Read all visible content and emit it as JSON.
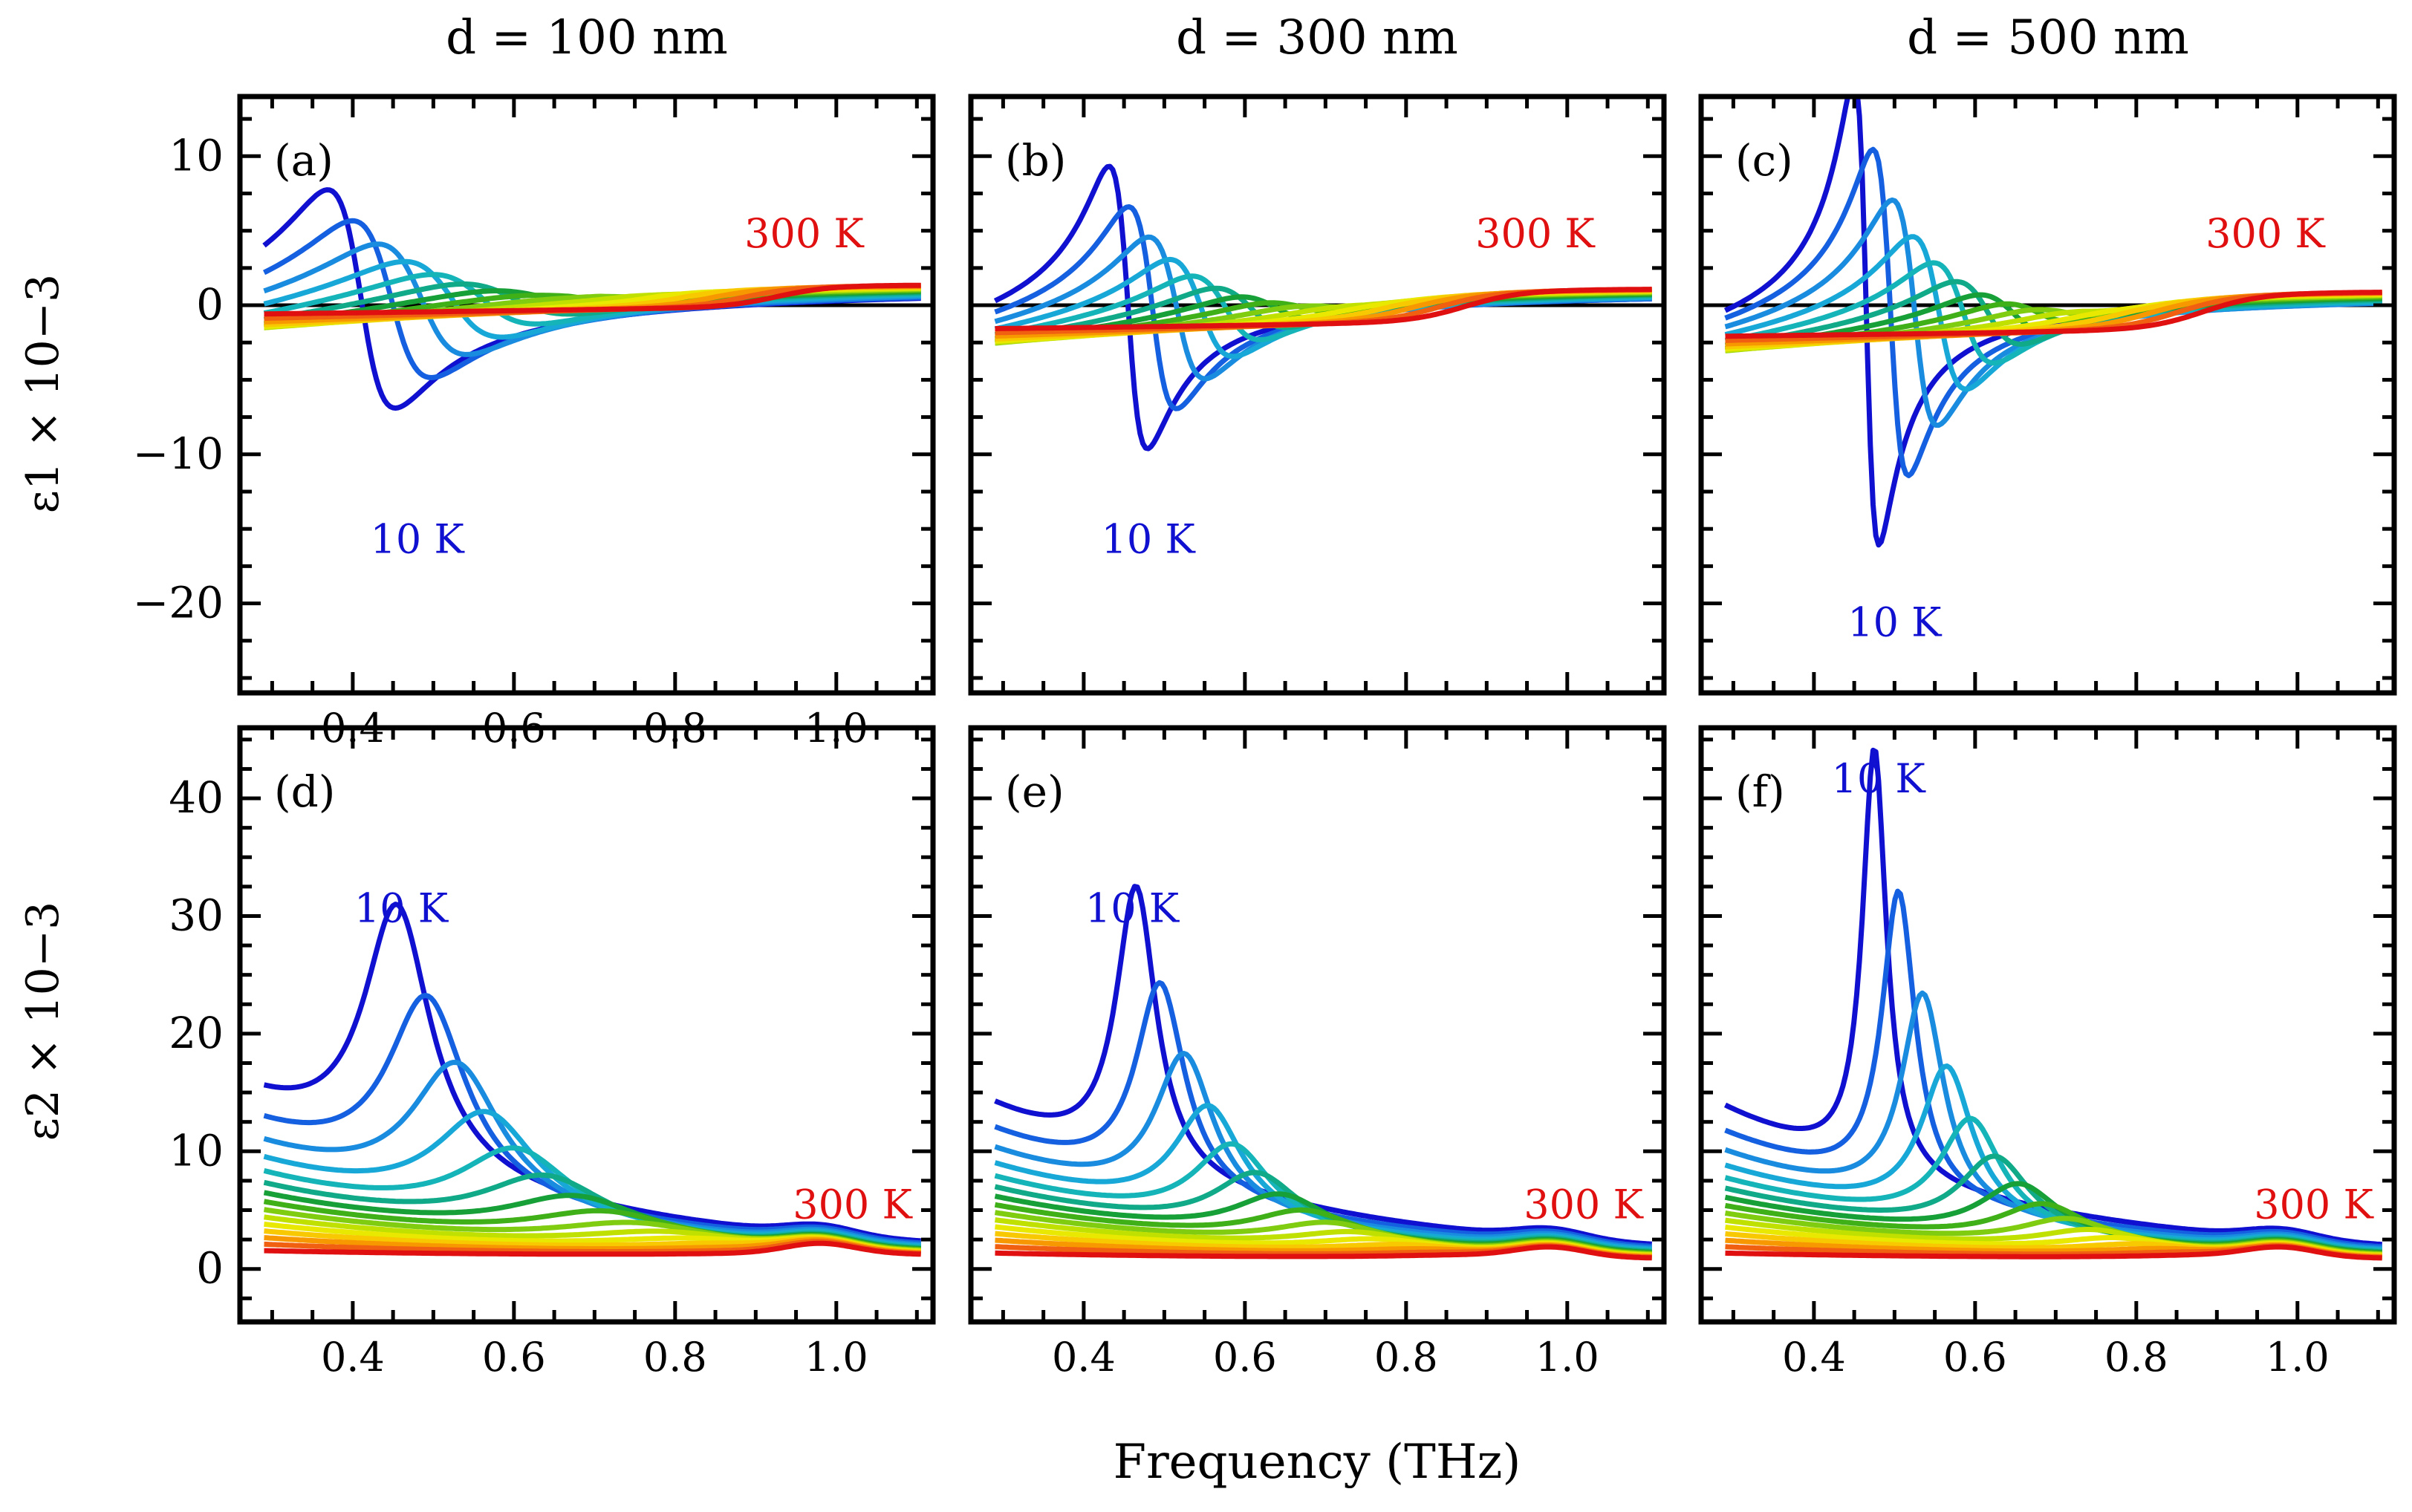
{
  "figure": {
    "xlabel": "Frequency (THz)",
    "column_titles": [
      "d = 100 nm",
      "d = 300 nm",
      "d = 500 nm"
    ],
    "row_ylabels": [
      "ε1 × 10−3",
      "ε2 × 10−3"
    ]
  },
  "colors": {
    "temperature_scale": [
      "#1010d0",
      "#1560e0",
      "#1a8ce0",
      "#18a8d8",
      "#14b4b8",
      "#10aa88",
      "#18a038",
      "#40b018",
      "#80cc10",
      "#c0e000",
      "#e8e800",
      "#f8c800",
      "#f89800",
      "#f06010",
      "#e01010"
    ]
  },
  "chart_data": [
    {
      "type": "line",
      "panel": "(a)",
      "title": "d = 100 nm",
      "ylabel": "ε1 × 10−3",
      "xlabel": "",
      "xlim": [
        0.26,
        1.12
      ],
      "ylim": [
        -26,
        14
      ],
      "xticks": [
        0.4,
        0.6,
        0.8,
        1.0
      ],
      "yticks": [
        -20,
        -10,
        0,
        10
      ],
      "xtick_labels": [
        "0.4",
        "0.6",
        "0.8",
        "1.0"
      ],
      "ytick_labels": [
        "−20",
        "−10",
        "0",
        "10"
      ],
      "annotations": [
        {
          "text": "10 K",
          "x": 0.48,
          "y": -16.6,
          "color": "#1010d0"
        },
        {
          "text": "300 K",
          "x": 0.96,
          "y": 3.9,
          "color": "#e01010"
        }
      ],
      "model": {
        "f0": 0.41,
        "fstep": 0.037,
        "a_start": 16,
        "a_end": 0.3,
        "w0": 0.045,
        "wstep": 0.009,
        "base": 1.5,
        "bg": -1.8,
        "tail": true
      }
    },
    {
      "type": "line",
      "panel": "(b)",
      "title": "d = 300 nm",
      "ylabel": "",
      "xlabel": "",
      "xlim": [
        0.26,
        1.12
      ],
      "ylim": [
        -26,
        14
      ],
      "xticks": [
        0.4,
        0.6,
        0.8,
        1.0
      ],
      "yticks": [
        -20,
        -10,
        0,
        10
      ],
      "xtick_labels": [
        "",
        "",
        "",
        ""
      ],
      "ytick_labels": [
        "",
        "",
        "",
        ""
      ],
      "annotations": [
        {
          "text": "10 K",
          "x": 0.48,
          "y": -16.6,
          "color": "#1010d0"
        },
        {
          "text": "300 K",
          "x": 0.96,
          "y": 3.9,
          "color": "#e01010"
        }
      ],
      "model": {
        "f0": 0.455,
        "fstep": 0.03,
        "a_start": 20,
        "a_end": 0.3,
        "w0": 0.025,
        "wstep": 0.007,
        "base": 1.2,
        "bg": -2.5,
        "tail": true
      }
    },
    {
      "type": "line",
      "panel": "(c)",
      "title": "d = 500 nm",
      "ylabel": "",
      "xlabel": "",
      "xlim": [
        0.26,
        1.12
      ],
      "ylim": [
        -26,
        14
      ],
      "xticks": [
        0.4,
        0.6,
        0.8,
        1.0
      ],
      "yticks": [
        -20,
        -10,
        0,
        10
      ],
      "xtick_labels": [
        "",
        "",
        "",
        ""
      ],
      "ytick_labels": [
        "",
        "",
        "",
        ""
      ],
      "annotations": [
        {
          "text": "10 K",
          "x": 0.5,
          "y": -22.2,
          "color": "#1010d0"
        },
        {
          "text": "300 K",
          "x": 0.96,
          "y": 3.9,
          "color": "#e01010"
        }
      ],
      "model": {
        "f0": 0.465,
        "fstep": 0.03,
        "a_start": 32,
        "a_end": 0.3,
        "w0": 0.016,
        "wstep": 0.007,
        "base": 1.0,
        "bg": -2.8,
        "tail": true
      }
    },
    {
      "type": "line",
      "panel": "(d)",
      "title": "",
      "ylabel": "ε2 × 10−3",
      "xlabel": "Frequency (THz)",
      "xlim": [
        0.26,
        1.12
      ],
      "ylim": [
        -4.5,
        46
      ],
      "xticks": [
        0.4,
        0.6,
        0.8,
        1.0
      ],
      "yticks": [
        0,
        10,
        20,
        30,
        40
      ],
      "xtick_labels": [
        "0.4",
        "0.6",
        "0.8",
        "1.0"
      ],
      "ytick_labels": [
        "0",
        "10",
        "20",
        "30",
        "40"
      ],
      "annotations": [
        {
          "text": "10 K",
          "x": 0.46,
          "y": 29.5,
          "color": "#1010d0"
        },
        {
          "text": "300 K",
          "x": 1.02,
          "y": 4.3,
          "color": "#e01010"
        }
      ],
      "model": {
        "f0": 0.455,
        "fstep": 0.037,
        "a_start": 22,
        "a_end": 0.3,
        "w0": 0.05,
        "wstep": 0.009,
        "base": 1.0,
        "bg": 0,
        "tail": true
      }
    },
    {
      "type": "line",
      "panel": "(e)",
      "title": "",
      "ylabel": "",
      "xlabel": "",
      "xlim": [
        0.26,
        1.12
      ],
      "ylim": [
        -4.5,
        46
      ],
      "xticks": [
        0.4,
        0.6,
        0.8,
        1.0
      ],
      "yticks": [
        0,
        10,
        20,
        30,
        40
      ],
      "xtick_labels": [
        "0.4",
        "0.6",
        "0.8",
        "1.0"
      ],
      "ytick_labels": [
        "",
        "",
        "",
        "",
        ""
      ],
      "annotations": [
        {
          "text": "10 K",
          "x": 0.46,
          "y": 29.5,
          "color": "#1010d0"
        },
        {
          "text": "300 K",
          "x": 1.02,
          "y": 4.3,
          "color": "#e01010"
        }
      ],
      "model": {
        "f0": 0.465,
        "fstep": 0.03,
        "a_start": 24,
        "a_end": 0.3,
        "w0": 0.03,
        "wstep": 0.007,
        "base": 0.8,
        "bg": 0,
        "tail": true
      }
    },
    {
      "type": "line",
      "panel": "(f)",
      "title": "",
      "ylabel": "",
      "xlabel": "",
      "xlim": [
        0.26,
        1.12
      ],
      "ylim": [
        -4.5,
        46
      ],
      "xticks": [
        0.4,
        0.6,
        0.8,
        1.0
      ],
      "yticks": [
        0,
        10,
        20,
        30,
        40
      ],
      "xtick_labels": [
        "0.4",
        "0.6",
        "0.8",
        "1.0"
      ],
      "ytick_labels": [
        "",
        "",
        "",
        "",
        ""
      ],
      "annotations": [
        {
          "text": "10 K",
          "x": 0.48,
          "y": 40.5,
          "color": "#1010d0"
        },
        {
          "text": "300 K",
          "x": 1.02,
          "y": 4.3,
          "color": "#e01010"
        }
      ],
      "model": {
        "f0": 0.475,
        "fstep": 0.03,
        "a_start": 36,
        "a_end": 0.3,
        "w0": 0.018,
        "wstep": 0.007,
        "base": 0.8,
        "bg": 0,
        "tail": true
      }
    }
  ]
}
